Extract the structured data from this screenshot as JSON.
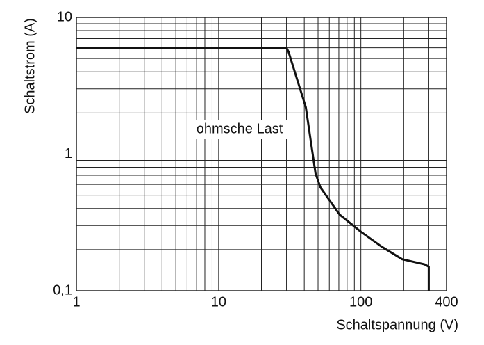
{
  "chart_data": {
    "type": "line",
    "x_log": true,
    "y_log": true,
    "minor_grid": true,
    "ylabel": "Schaltstrom (A)",
    "xlabel": "Schaltspannung (V)",
    "annotation": "ohmsche Last",
    "xlim": [
      1,
      400
    ],
    "xticks": [
      1,
      10,
      100,
      400
    ],
    "ylim": [
      0.1,
      10
    ],
    "yticks": [
      {
        "value": 0.1,
        "label": "0,1"
      },
      1,
      10
    ],
    "series": [
      {
        "color": "#111111",
        "x": [
          1,
          30,
          31,
          41,
          48,
          52,
          71,
          100,
          140,
          195,
          280,
          300,
          300
        ],
        "values": [
          6,
          6,
          5.6,
          2.2,
          0.72,
          0.57,
          0.36,
          0.27,
          0.21,
          0.17,
          0.156,
          0.15,
          0.1
        ]
      }
    ]
  }
}
